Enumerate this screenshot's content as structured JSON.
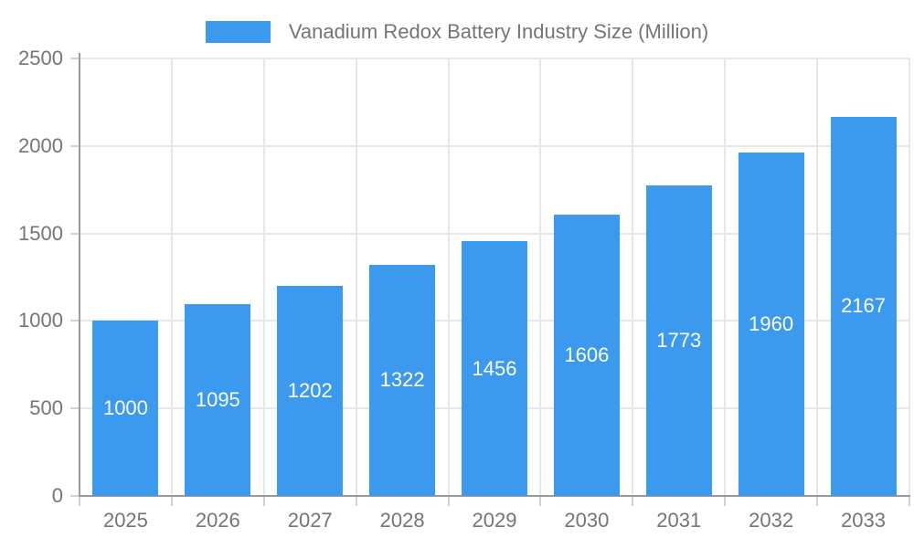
{
  "chart_data": {
    "type": "bar",
    "title": "Vanadium Redox Battery Industry Size (Million)",
    "categories": [
      "2025",
      "2026",
      "2027",
      "2028",
      "2029",
      "2030",
      "2031",
      "2032",
      "2033"
    ],
    "values": [
      1000,
      1095,
      1202,
      1322,
      1456,
      1606,
      1773,
      1960,
      2167
    ],
    "xlabel": "",
    "ylabel": "",
    "ylim": [
      0,
      2500
    ],
    "yticks": [
      0,
      500,
      1000,
      1500,
      2000,
      2500
    ],
    "grid": true,
    "legend_position": "top",
    "bar_color": "#3B99EE",
    "value_label_color": "#FFFFFF",
    "axis_text_color": "#757575",
    "grid_color": "#E7E7E7",
    "tick_color": "#D2D2D2",
    "axis_line_color": "#9A9A9A",
    "background_color": "#FFFFFF"
  },
  "legend": {
    "items": [
      {
        "label": "Vanadium Redox Battery Industry Size (Million)",
        "swatch_color": "#3B99EE"
      }
    ]
  }
}
